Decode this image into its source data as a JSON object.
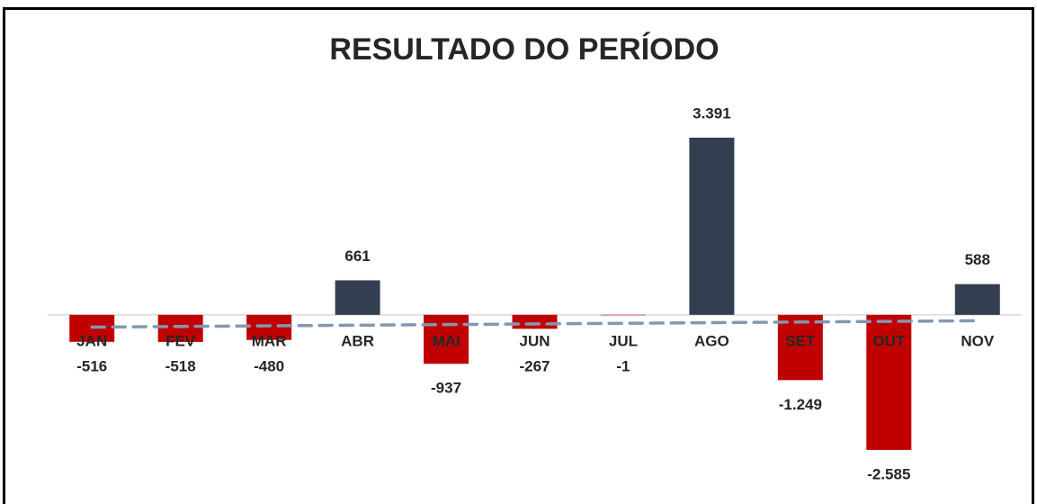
{
  "chart_data": {
    "type": "bar",
    "title": "RESULTADO DO PERÍODO",
    "categories": [
      "JAN",
      "FEV",
      "MAR",
      "ABR",
      "MAI",
      "JUN",
      "JUL",
      "AGO",
      "SET",
      "OUT",
      "NOV"
    ],
    "values": [
      -516,
      -518,
      -480,
      661,
      -937,
      -267,
      -1,
      3391,
      -1249,
      -2585,
      588
    ],
    "value_labels": [
      "-516",
      "-518",
      "-480",
      "661",
      "-937",
      "-267",
      "-1",
      "3.391",
      "-1.249",
      "-2.585",
      "588"
    ],
    "positive_color": "#333f50",
    "negative_color": "#c00000",
    "ylim": [
      -3000,
      4000
    ],
    "trendline": true,
    "trendline_color": "#8497b0"
  }
}
